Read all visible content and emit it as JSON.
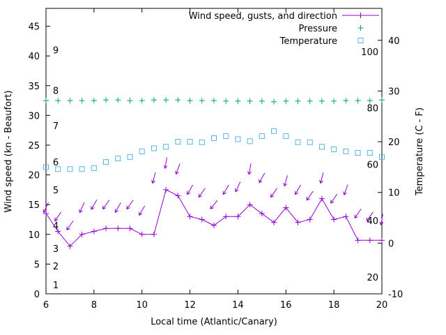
{
  "page": {
    "background": "#ffffff"
  },
  "chart_data": {
    "type": "line",
    "title": "",
    "xlabel": "Local time (Atlantic/Canary)",
    "x_range": [
      6,
      20
    ],
    "x_ticks": [
      6,
      8,
      10,
      12,
      14,
      16,
      18,
      20
    ],
    "left_axis": {
      "label": "Wind speed (kn - Beaufort)",
      "range": [
        0,
        48
      ],
      "ticks": [
        0,
        5,
        10,
        15,
        20,
        25,
        30,
        35,
        40,
        45
      ]
    },
    "right_axis": {
      "label": "Temperature (C - F)",
      "range": [
        -10,
        46.3
      ],
      "ticks": [
        -10,
        0,
        10,
        20,
        30,
        40
      ]
    },
    "beaufort_labels": [
      {
        "text": "1",
        "kn": 1.5
      },
      {
        "text": "2",
        "kn": 4.7
      },
      {
        "text": "3",
        "kn": 7.6
      },
      {
        "text": "4",
        "kn": 11.5
      },
      {
        "text": "5",
        "kn": 17.5
      },
      {
        "text": "6",
        "kn": 22.2
      },
      {
        "text": "7",
        "kn": 28.3
      },
      {
        "text": "8",
        "kn": 34.2
      },
      {
        "text": "9",
        "kn": 41.0
      }
    ],
    "fahrenheit_labels": [
      {
        "text": "20",
        "f": 20
      },
      {
        "text": "40",
        "f": 40
      },
      {
        "text": "60",
        "f": 60
      },
      {
        "text": "80",
        "f": 80
      },
      {
        "text": "100",
        "f": 100
      }
    ],
    "legend": [
      {
        "label": "Wind speed, gusts, and direction",
        "series": "wind",
        "marker": "plus-line",
        "color": "#9400d3"
      },
      {
        "label": "Pressure",
        "series": "pressure",
        "marker": "plus",
        "color": "#009e73"
      },
      {
        "label": "Temperature",
        "series": "temperature",
        "marker": "open-square",
        "color": "#56b4e9"
      }
    ],
    "colors": {
      "wind": "#9400d3",
      "pressure": "#009e73",
      "temperature": "#56b4e9",
      "axis": "#000000"
    },
    "x": [
      6,
      6.5,
      7,
      7.5,
      8,
      8.5,
      9,
      9.5,
      10,
      10.5,
      11,
      11.5,
      12,
      12.5,
      13,
      13.5,
      14,
      14.5,
      15,
      15.5,
      16,
      16.5,
      17,
      17.5,
      18,
      18.5,
      19,
      19.5,
      20
    ],
    "series": {
      "wind_speed_kn": [
        13.5,
        10.5,
        8,
        10,
        10.5,
        11,
        11,
        11,
        10,
        10,
        17.5,
        16.5,
        13,
        12.5,
        11.5,
        13,
        13,
        15,
        13.5,
        12,
        14.5,
        12,
        12.5,
        16,
        12.5,
        13,
        9,
        9,
        9
      ],
      "gust_kn": [
        14.5,
        13,
        11.5,
        14.5,
        15,
        15,
        14.5,
        15,
        14,
        19.5,
        22,
        21,
        17.5,
        17,
        15,
        17.5,
        18,
        21,
        19.5,
        17,
        19,
        17.5,
        16.5,
        19.5,
        16,
        17.5,
        13.5,
        13,
        12.5
      ],
      "gust_direction_deg": [
        205,
        215,
        215,
        205,
        210,
        215,
        210,
        215,
        210,
        195,
        190,
        200,
        210,
        215,
        220,
        210,
        205,
        190,
        210,
        215,
        195,
        210,
        215,
        195,
        215,
        200,
        215,
        215,
        190
      ],
      "pressure_plot_kn_scale": [
        32.5,
        32.5,
        32.5,
        32.5,
        32.5,
        32.6,
        32.6,
        32.5,
        32.5,
        32.6,
        32.6,
        32.6,
        32.5,
        32.5,
        32.5,
        32.4,
        32.4,
        32.4,
        32.4,
        32.3,
        32.4,
        32.4,
        32.4,
        32.4,
        32.4,
        32.5,
        32.5,
        32.5,
        32.6
      ],
      "temperature_c": [
        15.0,
        14.6,
        14.6,
        14.6,
        14.8,
        16.0,
        16.7,
        17.0,
        18.1,
        18.7,
        19.0,
        20.0,
        20.0,
        19.9,
        20.7,
        21.1,
        20.5,
        20.1,
        21.1,
        22.1,
        21.1,
        19.9,
        19.9,
        19.0,
        18.5,
        18.1,
        17.8,
        17.8,
        17.0
      ]
    }
  }
}
